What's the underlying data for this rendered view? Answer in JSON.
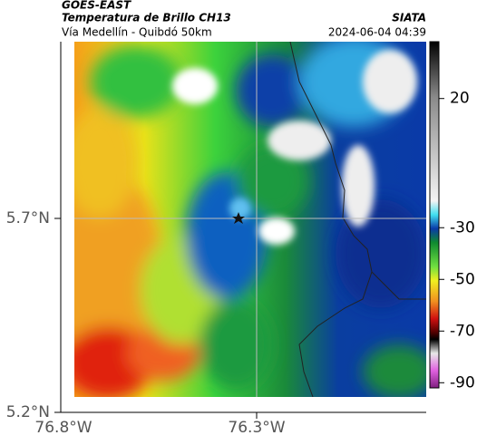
{
  "header": {
    "source": "GOES-EAST",
    "title": "Temperatura de Brillo CH13",
    "subtitle": "Vía Medellín - Quibdó 50km",
    "agency": "SIATA",
    "timestamp": "2024-06-04 04:39"
  },
  "map": {
    "lat_labels": [
      "5.7°N",
      "5.2°N"
    ],
    "lon_labels": [
      "76.8°W",
      "76.3°W"
    ]
  },
  "colorbar": {
    "lim": [
      -92,
      42
    ],
    "ticks": [
      20,
      -30,
      -50,
      -70,
      -90
    ]
  }
}
